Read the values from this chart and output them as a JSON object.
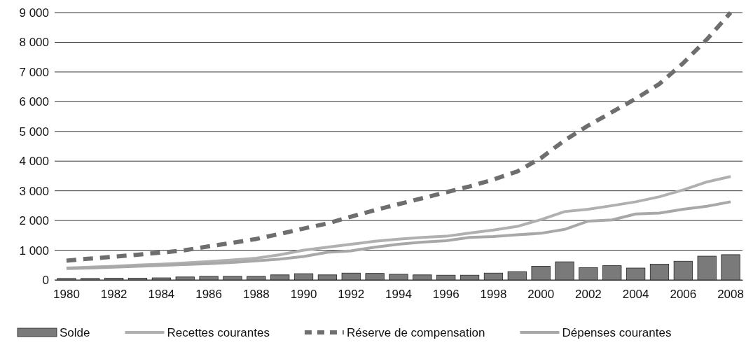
{
  "chart_data": {
    "type": "bar",
    "categories": [
      "1980",
      null,
      "1982",
      null,
      "1984",
      null,
      "1986",
      null,
      "1988",
      null,
      "1990",
      null,
      "1992",
      null,
      "1994",
      null,
      "1996",
      null,
      "1998",
      null,
      "2000",
      null,
      "2002",
      null,
      "2004",
      null,
      "2006",
      null,
      "2008"
    ],
    "ylim": [
      0,
      9000
    ],
    "yticks": [
      0,
      {
        "value": 1000,
        "label": "1 000"
      },
      {
        "value": 2000,
        "label": "2 000"
      },
      {
        "value": 3000,
        "label": "3 000"
      },
      {
        "value": 4000,
        "label": "4 000"
      },
      {
        "value": 5000,
        "label": "5 000"
      },
      {
        "value": 6000,
        "label": "6 000"
      },
      {
        "value": 7000,
        "label": "7 000"
      },
      {
        "value": 8000,
        "label": "8 000"
      },
      {
        "value": 9000,
        "label": "9 000"
      }
    ],
    "grid": "y",
    "legend": "bottom",
    "series": [
      {
        "name": "Solde",
        "color": "#7a7a7a",
        "values": [
          50,
          50,
          60,
          60,
          70,
          100,
          120,
          120,
          120,
          170,
          210,
          170,
          230,
          220,
          190,
          170,
          160,
          160,
          230,
          280,
          460,
          610,
          410,
          480,
          400,
          530,
          630,
          800,
          850
        ]
      },
      {
        "name": "Recettes courantes",
        "type": "line",
        "color": "#b0b0b0",
        "line_style": "solid",
        "values": [
          400,
          430,
          460,
          500,
          530,
          570,
          620,
          670,
          730,
          850,
          1000,
          1100,
          1200,
          1300,
          1370,
          1430,
          1470,
          1580,
          1680,
          1800,
          2030,
          2300,
          2380,
          2500,
          2630,
          2800,
          3030,
          3300,
          3480
        ]
      },
      {
        "name": "Réserve de compensation",
        "type": "line",
        "color": "#6e6e6e",
        "line_style": "dashed",
        "values": [
          650,
          720,
          780,
          850,
          920,
          1000,
          1130,
          1250,
          1380,
          1550,
          1730,
          1900,
          2130,
          2350,
          2550,
          2750,
          2950,
          3150,
          3380,
          3650,
          4100,
          4700,
          5200,
          5650,
          6100,
          6600,
          7300,
          8100,
          9000
        ]
      },
      {
        "name": "Dépenses courantes",
        "type": "line",
        "color": "#a8a8a8",
        "line_style": "solid",
        "values": [
          380,
          400,
          430,
          460,
          490,
          520,
          550,
          590,
          640,
          700,
          790,
          930,
          980,
          1100,
          1200,
          1270,
          1320,
          1430,
          1460,
          1520,
          1570,
          1700,
          1980,
          2020,
          2220,
          2250,
          2380,
          2480,
          2630
        ]
      }
    ]
  }
}
